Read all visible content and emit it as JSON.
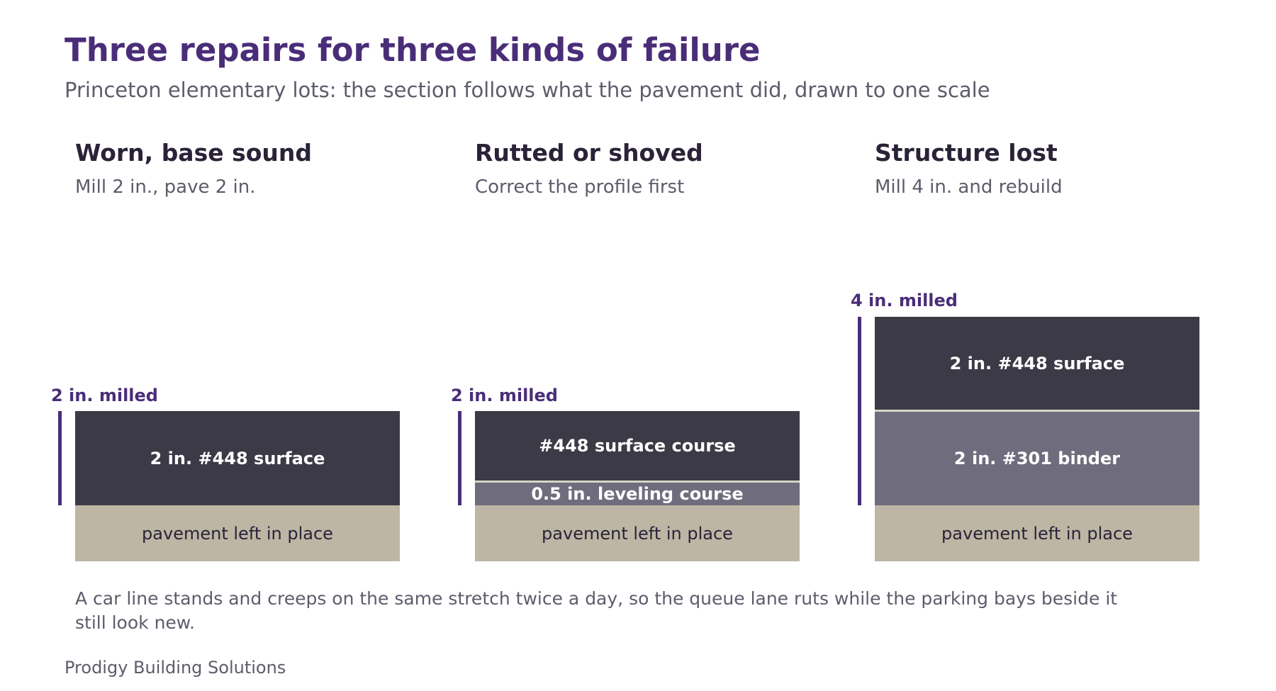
{
  "header": {
    "title": "Three repairs for three kinds of failure",
    "subtitle": "Princeton elementary lots: the section follows what the pavement did, drawn to one scale"
  },
  "colors": {
    "accent": "#4a2d78",
    "title_text": "#4a2d78",
    "heading_text": "#2a2338",
    "muted_text": "#5f5b6b",
    "surface_layer": "#3c3a46",
    "binder_layer": "#6f6d7d",
    "existing_pavement": "#bdb6a4",
    "layer_text_light": "#ffffff",
    "layer_text_dark": "#2a2338"
  },
  "columns": [
    {
      "title": "Worn, base sound",
      "subtitle": "Mill 2 in., pave 2 in.",
      "milled_label": "2 in. milled",
      "layers": [
        {
          "label": "2 in. #448 surface",
          "type": "surface"
        },
        {
          "label": "pavement left in place",
          "type": "existing"
        }
      ]
    },
    {
      "title": "Rutted or shoved",
      "subtitle": "Correct the profile first",
      "milled_label": "2 in. milled",
      "layers": [
        {
          "label": "#448 surface course",
          "type": "surface"
        },
        {
          "label": "0.5 in. leveling course",
          "type": "binder"
        },
        {
          "label": "pavement left in place",
          "type": "existing"
        }
      ]
    },
    {
      "title": "Structure lost",
      "subtitle": "Mill 4 in. and rebuild",
      "milled_label": "4 in. milled",
      "layers": [
        {
          "label": "2 in. #448 surface",
          "type": "surface"
        },
        {
          "label": "2 in. #301 binder",
          "type": "binder"
        },
        {
          "label": "pavement left in place",
          "type": "existing"
        }
      ]
    }
  ],
  "note": "A car line stands and creeps on the same stretch twice a day, so the queue lane ruts while the parking bays beside it still look new.",
  "footer": "Prodigy Building Solutions"
}
